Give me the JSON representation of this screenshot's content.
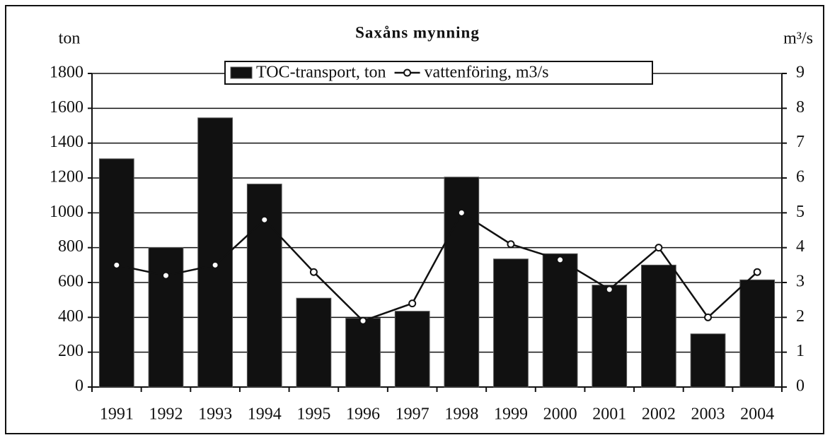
{
  "chart_data": {
    "type": "combo",
    "title": "Saxåns mynning",
    "y_label": "ton",
    "y2_label": "m³/s",
    "categories": [
      "1991",
      "1992",
      "1993",
      "1994",
      "1995",
      "1996",
      "1997",
      "1998",
      "1999",
      "2000",
      "2001",
      "2002",
      "2003",
      "2004"
    ],
    "series": [
      {
        "name": "TOC-transport, ton",
        "type": "bar",
        "color": "#111111",
        "values": [
          1310,
          800,
          1545,
          1165,
          510,
          395,
          435,
          1205,
          735,
          765,
          585,
          700,
          305,
          615
        ]
      },
      {
        "name": "vattenföring, m3/s",
        "type": "line",
        "axis": "y2",
        "color": "#111111",
        "values": [
          3.5,
          3.2,
          3.5,
          4.8,
          3.3,
          1.9,
          2.4,
          5.0,
          4.1,
          3.65,
          2.8,
          4.0,
          2.0,
          3.3
        ]
      }
    ],
    "ylim": [
      0,
      1800
    ],
    "yticks": [
      0,
      200,
      400,
      600,
      800,
      1000,
      1200,
      1400,
      1600,
      1800
    ],
    "y2lim": [
      0,
      9
    ],
    "y2ticks": [
      0,
      1,
      2,
      3,
      4,
      5,
      6,
      7,
      8,
      9
    ],
    "grid": true,
    "legend": "top"
  }
}
